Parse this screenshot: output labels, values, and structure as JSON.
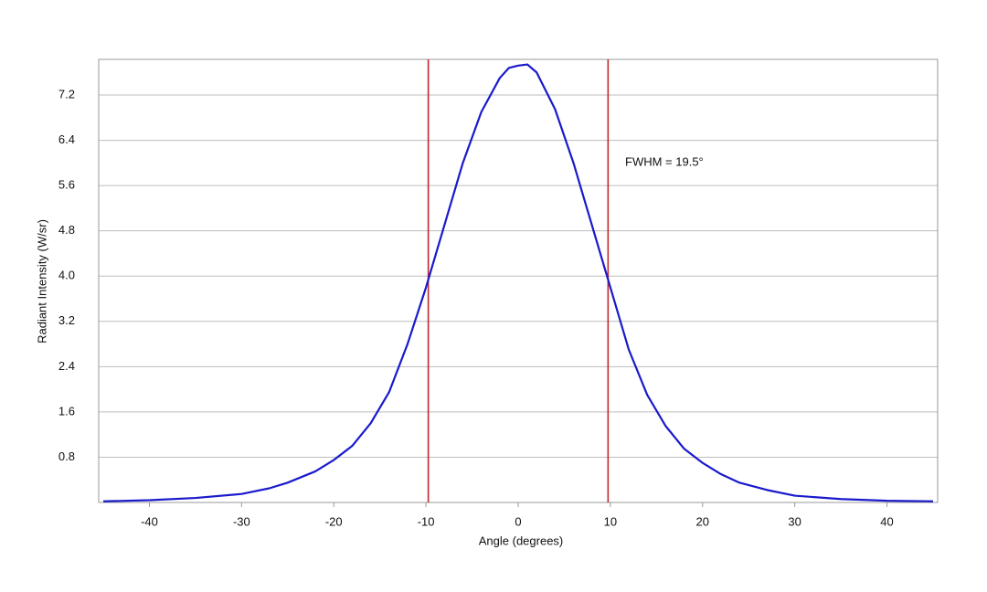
{
  "chart_data": {
    "type": "line",
    "x_label": "Angle (degrees)",
    "y_label": "Radiant Intensity (W/sr)",
    "annotation": "FWHM = 19.5°",
    "x": [
      -45,
      -40,
      -35,
      -30,
      -27,
      -25,
      -22,
      -20,
      -18,
      -16,
      -14,
      -12,
      -10,
      -8,
      -6,
      -4,
      -2,
      -1,
      0,
      1,
      2,
      4,
      6,
      8,
      10,
      12,
      14,
      16,
      18,
      20,
      22,
      24,
      27,
      30,
      35,
      40,
      45
    ],
    "series": [
      {
        "name": "Radiant Intensity",
        "color": "#1a1acc",
        "values": [
          0.02,
          0.04,
          0.08,
          0.15,
          0.25,
          0.35,
          0.55,
          0.75,
          1.0,
          1.4,
          1.95,
          2.8,
          3.8,
          4.9,
          6.0,
          6.9,
          7.5,
          7.68,
          7.72,
          7.74,
          7.6,
          6.95,
          6.0,
          4.9,
          3.8,
          2.7,
          1.9,
          1.35,
          0.95,
          0.7,
          0.5,
          0.35,
          0.22,
          0.12,
          0.06,
          0.03,
          0.02
        ]
      }
    ],
    "vlines": [
      -9.75,
      9.75
    ],
    "vline_color": "#c0282d",
    "xlim": [
      -45.5,
      45.5
    ],
    "ylim": [
      0,
      7.83
    ],
    "xticks": [
      -40,
      -30,
      -20,
      -10,
      0,
      10,
      20,
      30,
      40
    ],
    "yticks": [
      0.8,
      1.6,
      2.4,
      3.2,
      {
        "value": 4,
        "label": "4.0"
      },
      4.8,
      5.6,
      6.4,
      7.2
    ],
    "grid": true
  }
}
